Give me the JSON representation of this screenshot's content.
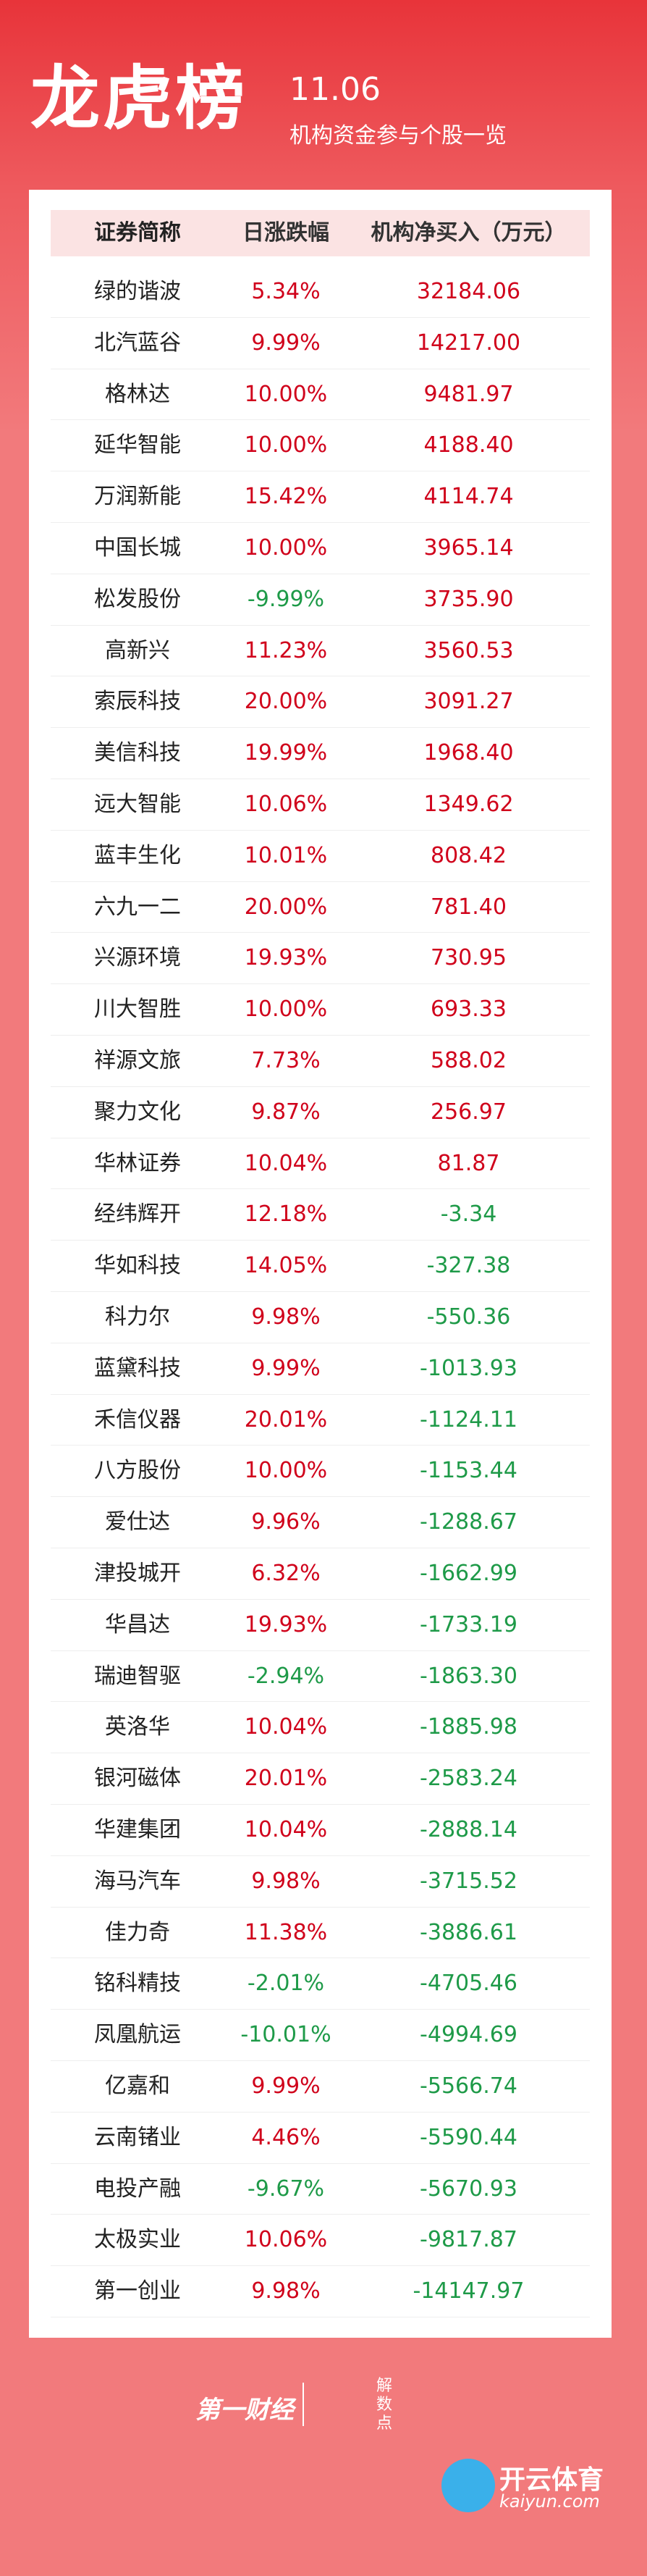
{
  "header": {
    "title": "龙虎榜",
    "date": "11.06",
    "subtitle": "机构资金参与个股一览"
  },
  "table": {
    "columns": [
      "证券简称",
      "日涨跌幅",
      "机构净买入（万元）"
    ],
    "rows": [
      [
        "绿的谐波",
        "5.34%",
        "32184.06"
      ],
      [
        "北汽蓝谷",
        "9.99%",
        "14217.00"
      ],
      [
        "格林达",
        "10.00%",
        "9481.97"
      ],
      [
        "延华智能",
        "10.00%",
        "4188.40"
      ],
      [
        "万润新能",
        "15.42%",
        "4114.74"
      ],
      [
        "中国长城",
        "10.00%",
        "3965.14"
      ],
      [
        "松发股份",
        "-9.99%",
        "3735.90"
      ],
      [
        "高新兴",
        "11.23%",
        "3560.53"
      ],
      [
        "索辰科技",
        "20.00%",
        "3091.27"
      ],
      [
        "美信科技",
        "19.99%",
        "1968.40"
      ],
      [
        "远大智能",
        "10.06%",
        "1349.62"
      ],
      [
        "蓝丰生化",
        "10.01%",
        "808.42"
      ],
      [
        "六九一二",
        "20.00%",
        "781.40"
      ],
      [
        "兴源环境",
        "19.93%",
        "730.95"
      ],
      [
        "川大智胜",
        "10.00%",
        "693.33"
      ],
      [
        "祥源文旅",
        "7.73%",
        "588.02"
      ],
      [
        "聚力文化",
        "9.87%",
        "256.97"
      ],
      [
        "华林证券",
        "10.04%",
        "81.87"
      ],
      [
        "经纬辉开",
        "12.18%",
        "-3.34"
      ],
      [
        "华如科技",
        "14.05%",
        "-327.38"
      ],
      [
        "科力尔",
        "9.98%",
        "-550.36"
      ],
      [
        "蓝黛科技",
        "9.99%",
        "-1013.93"
      ],
      [
        "禾信仪器",
        "20.01%",
        "-1124.11"
      ],
      [
        "八方股份",
        "10.00%",
        "-1153.44"
      ],
      [
        "爱仕达",
        "9.96%",
        "-1288.67"
      ],
      [
        "津投城开",
        "6.32%",
        "-1662.99"
      ],
      [
        "华昌达",
        "19.93%",
        "-1733.19"
      ],
      [
        "瑞迪智驱",
        "-2.94%",
        "-1863.30"
      ],
      [
        "英洛华",
        "10.04%",
        "-1885.98"
      ],
      [
        "银河磁体",
        "20.01%",
        "-2583.24"
      ],
      [
        "华建集团",
        "10.04%",
        "-2888.14"
      ],
      [
        "海马汽车",
        "9.98%",
        "-3715.52"
      ],
      [
        "佳力奇",
        "11.38%",
        "-3886.61"
      ],
      [
        "铭科精技",
        "-2.01%",
        "-4705.46"
      ],
      [
        "凤凰航运",
        "-10.01%",
        "-4994.69"
      ],
      [
        "亿嘉和",
        "9.99%",
        "-5566.74"
      ],
      [
        "云南锗业",
        "4.46%",
        "-5590.44"
      ],
      [
        "电投产融",
        "-9.67%",
        "-5670.93"
      ],
      [
        "太极实业",
        "10.06%",
        "-9817.87"
      ],
      [
        "第一创业",
        "9.98%",
        "-14147.97"
      ]
    ]
  },
  "footer": {
    "logo1": "第一财经",
    "logo2": "解数点",
    "watermark": "开云体育",
    "watermark_url": "kaiyun.com"
  }
}
